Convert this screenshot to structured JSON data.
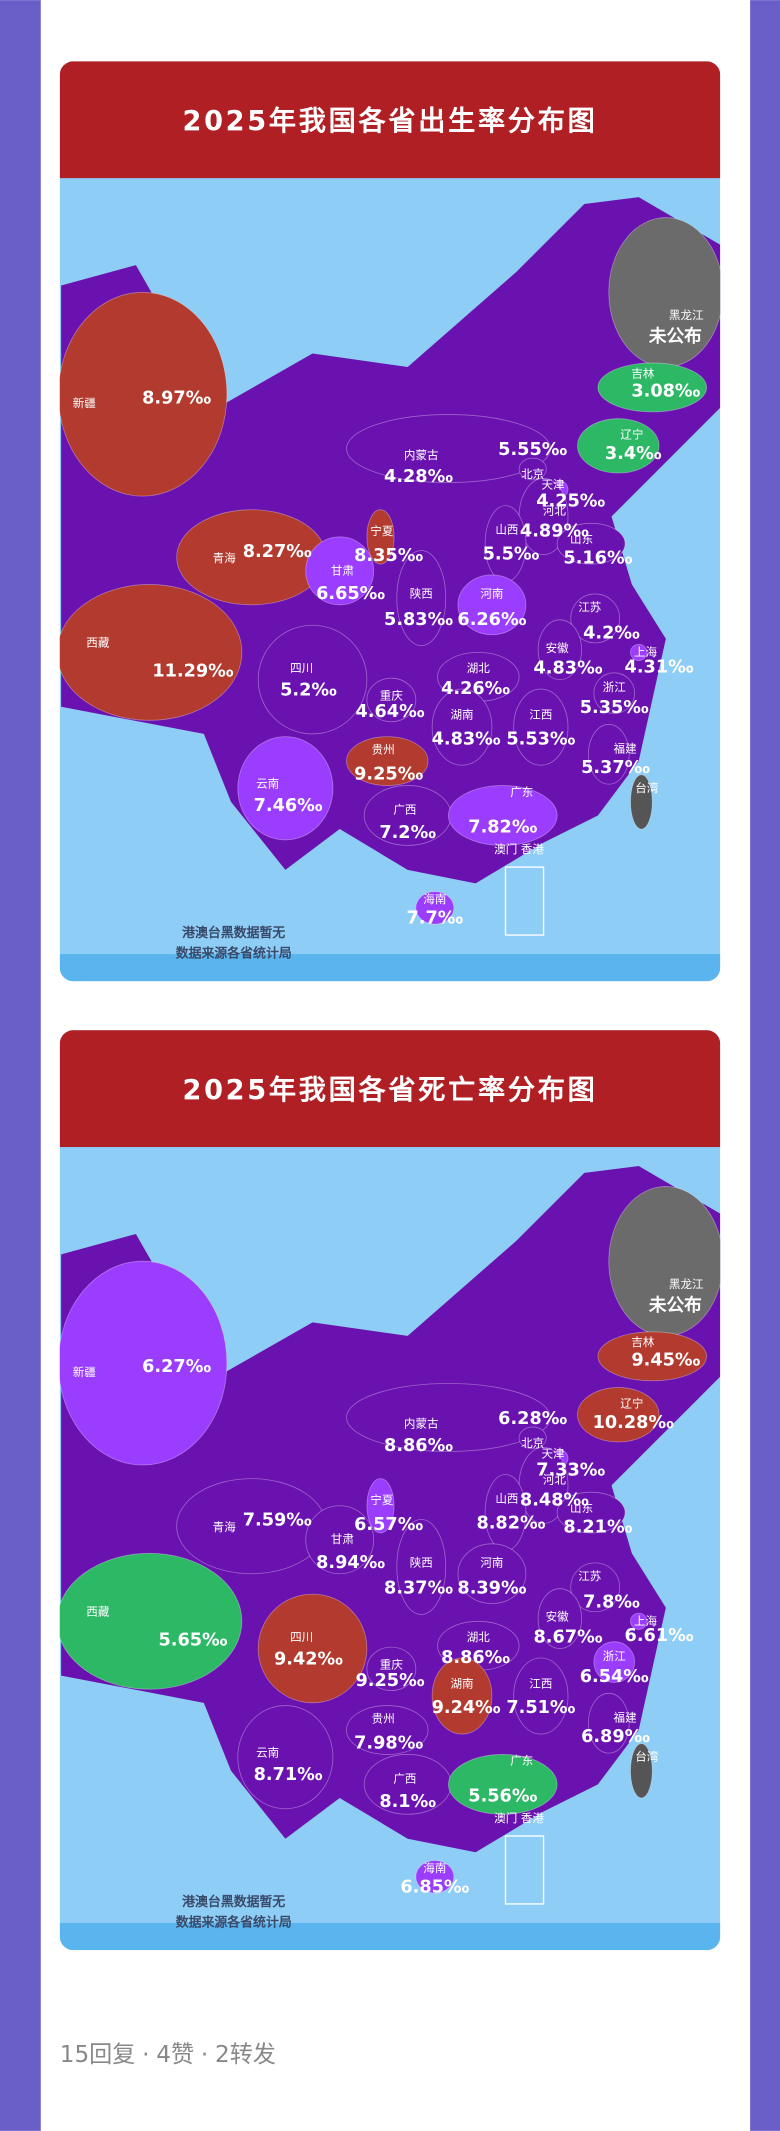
{
  "maps": [
    {
      "title": "2025年我国各省出生率分布图",
      "regions": [
        {
          "name": "新疆",
          "value": "8.97‰",
          "color": "#b23a2e"
        },
        {
          "name": "黑龙江",
          "value": "未公布",
          "color": "#6b6b6b"
        },
        {
          "name": "吉林",
          "value": "3.08‰",
          "color": "#2db866"
        },
        {
          "name": "辽宁",
          "value": "3.4‰",
          "color": "#2db866"
        },
        {
          "name": "内蒙古",
          "value": "4.28‰",
          "color": "#6a12b0"
        },
        {
          "name": "北京",
          "value": "5.55‰",
          "color": "#6a12b0"
        },
        {
          "name": "天津",
          "value": "4.25‰",
          "color": "#9b3dff"
        },
        {
          "name": "河北",
          "value": "4.89‰",
          "color": "#6a12b0"
        },
        {
          "name": "山西",
          "value": "5.5‰",
          "color": "#6a12b0"
        },
        {
          "name": "山东",
          "value": "5.16‰",
          "color": "#6a12b0"
        },
        {
          "name": "宁夏",
          "value": "8.35‰",
          "color": "#b23a2e"
        },
        {
          "name": "青海",
          "value": "8.27‰",
          "color": "#b23a2e"
        },
        {
          "name": "甘肃",
          "value": "6.65‰",
          "color": "#9b3dff"
        },
        {
          "name": "陕西",
          "value": "5.83‰",
          "color": "#6a12b0"
        },
        {
          "name": "河南",
          "value": "6.26‰",
          "color": "#9b3dff"
        },
        {
          "name": "江苏",
          "value": "4.2‰",
          "color": "#6a12b0"
        },
        {
          "name": "上海",
          "value": "4.31‰",
          "color": "#9b3dff"
        },
        {
          "name": "西藏",
          "value": "11.29‰",
          "color": "#b23a2e"
        },
        {
          "name": "安徽",
          "value": "4.83‰",
          "color": "#6a12b0"
        },
        {
          "name": "湖北",
          "value": "4.26‰",
          "color": "#6a12b0"
        },
        {
          "name": "四川",
          "value": "5.2‰",
          "color": "#6a12b0"
        },
        {
          "name": "重庆",
          "value": "4.64‰",
          "color": "#6a12b0"
        },
        {
          "name": "浙江",
          "value": "5.35‰",
          "color": "#6a12b0"
        },
        {
          "name": "湖南",
          "value": "4.83‰",
          "color": "#6a12b0"
        },
        {
          "name": "江西",
          "value": "5.53‰",
          "color": "#6a12b0"
        },
        {
          "name": "福建",
          "value": "5.37‰",
          "color": "#6a12b0"
        },
        {
          "name": "贵州",
          "value": "9.25‰",
          "color": "#b23a2e"
        },
        {
          "name": "云南",
          "value": "7.46‰",
          "color": "#9b3dff"
        },
        {
          "name": "台湾",
          "color": "#555555"
        },
        {
          "name": "广西",
          "value": "7.2‰",
          "color": "#6a12b0"
        },
        {
          "name": "广东",
          "value": "7.82‰",
          "color": "#9b3dff"
        },
        {
          "name": "澳门 香港"
        },
        {
          "name": "海南",
          "value": "7.7‰",
          "color": "#9b3dff"
        }
      ],
      "notes": [
        "港澳台黑数据暂无",
        "数据来源各省统计局"
      ]
    },
    {
      "title": "2025年我国各省死亡率分布图",
      "regions": [
        {
          "name": "新疆",
          "value": "6.27‰",
          "color": "#9b3dff"
        },
        {
          "name": "黑龙江",
          "value": "未公布",
          "color": "#6b6b6b"
        },
        {
          "name": "吉林",
          "value": "9.45‰",
          "color": "#b23a2e"
        },
        {
          "name": "辽宁",
          "value": "10.28‰",
          "color": "#b23a2e"
        },
        {
          "name": "内蒙古",
          "value": "8.86‰",
          "color": "#6a12b0"
        },
        {
          "name": "北京",
          "value": "6.28‰",
          "color": "#6a12b0"
        },
        {
          "name": "天津",
          "value": "7.33‰",
          "color": "#9b3dff"
        },
        {
          "name": "河北",
          "value": "8.48‰",
          "color": "#6a12b0"
        },
        {
          "name": "山西",
          "value": "8.82‰",
          "color": "#6a12b0"
        },
        {
          "name": "山东",
          "value": "8.21‰",
          "color": "#6a12b0"
        },
        {
          "name": "宁夏",
          "value": "6.57‰",
          "color": "#9b3dff"
        },
        {
          "name": "青海",
          "value": "7.59‰",
          "color": "#6a12b0"
        },
        {
          "name": "甘肃",
          "value": "8.94‰",
          "color": "#6a12b0"
        },
        {
          "name": "陕西",
          "value": "8.37‰",
          "color": "#6a12b0"
        },
        {
          "name": "河南",
          "value": "8.39‰",
          "color": "#6a12b0"
        },
        {
          "name": "江苏",
          "value": "7.8‰",
          "color": "#6a12b0"
        },
        {
          "name": "上海",
          "value": "6.61‰",
          "color": "#9b3dff"
        },
        {
          "name": "西藏",
          "value": "5.65‰",
          "color": "#2db866"
        },
        {
          "name": "安徽",
          "value": "8.67‰",
          "color": "#6a12b0"
        },
        {
          "name": "湖北",
          "value": "8.86‰",
          "color": "#6a12b0"
        },
        {
          "name": "四川",
          "value": "9.42‰",
          "color": "#b23a2e"
        },
        {
          "name": "重庆",
          "value": "9.25‰",
          "color": "#6a12b0"
        },
        {
          "name": "浙江",
          "value": "6.54‰",
          "color": "#9b3dff"
        },
        {
          "name": "湖南",
          "value": "9.24‰",
          "color": "#b23a2e"
        },
        {
          "name": "江西",
          "value": "7.51‰",
          "color": "#6a12b0"
        },
        {
          "name": "福建",
          "value": "6.89‰",
          "color": "#6a12b0"
        },
        {
          "name": "贵州",
          "value": "7.98‰",
          "color": "#6a12b0"
        },
        {
          "name": "云南",
          "value": "8.71‰",
          "color": "#6a12b0"
        },
        {
          "name": "台湾",
          "color": "#555555"
        },
        {
          "name": "广西",
          "value": "8.1‰",
          "color": "#6a12b0"
        },
        {
          "name": "广东",
          "value": "5.56‰",
          "color": "#2db866"
        },
        {
          "name": "澳门 香港"
        },
        {
          "name": "海南",
          "value": "6.85‰",
          "color": "#9b3dff"
        }
      ],
      "notes": [
        "港澳台黑数据暂无",
        "数据来源各省统计局"
      ]
    }
  ],
  "footer": {
    "replies": "15回复",
    "likes": "4赞",
    "reposts": "2转发",
    "separator": "·"
  }
}
